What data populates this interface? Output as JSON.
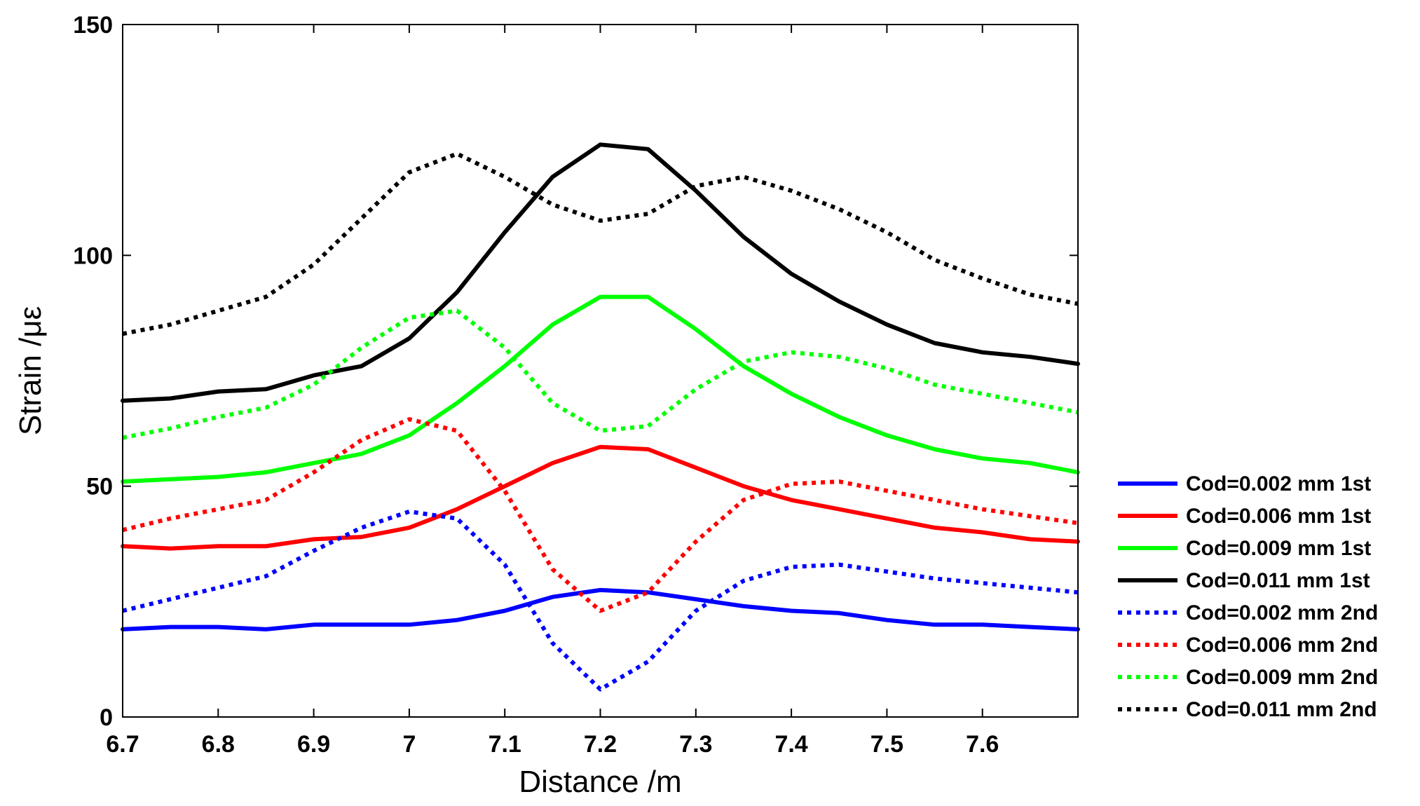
{
  "chart_data": {
    "type": "line",
    "title": "",
    "xlabel": "Distance /m",
    "ylabel": "Strain /με",
    "xlim": [
      6.7,
      7.7
    ],
    "ylim": [
      0,
      150
    ],
    "xticks": [
      6.7,
      6.8,
      6.9,
      7,
      7.1,
      7.2,
      7.3,
      7.4,
      7.5,
      7.6
    ],
    "xtick_labels": [
      "6.7",
      "6.8",
      "6.9",
      "7",
      "7.1",
      "7.2",
      "7.3",
      "7.4",
      "7.5",
      "7.6"
    ],
    "yticks": [
      0,
      50,
      100,
      150
    ],
    "ytick_labels": [
      "0",
      "50",
      "100",
      "150"
    ],
    "grid": false,
    "legend_position": "outside-right-bottom",
    "series": [
      {
        "name": "Cod=0.002 mm 1st",
        "color": "#0000ff",
        "style": "solid",
        "x": [
          6.7,
          6.75,
          6.8,
          6.85,
          6.9,
          6.95,
          7.0,
          7.05,
          7.1,
          7.15,
          7.2,
          7.25,
          7.3,
          7.35,
          7.4,
          7.45,
          7.5,
          7.55,
          7.6,
          7.65,
          7.7
        ],
        "y": [
          19,
          19.5,
          19.5,
          19,
          20,
          20,
          20,
          21,
          23,
          26,
          27.5,
          27,
          25.5,
          24,
          23,
          22.5,
          21,
          20,
          20,
          19.5,
          19
        ]
      },
      {
        "name": "Cod=0.006 mm 1st",
        "color": "#ff0000",
        "style": "solid",
        "x": [
          6.7,
          6.75,
          6.8,
          6.85,
          6.9,
          6.95,
          7.0,
          7.05,
          7.1,
          7.15,
          7.2,
          7.25,
          7.3,
          7.35,
          7.4,
          7.45,
          7.5,
          7.55,
          7.6,
          7.65,
          7.7
        ],
        "y": [
          37,
          36.5,
          37,
          37,
          38.5,
          39,
          41,
          45,
          50,
          55,
          58.5,
          58,
          54,
          50,
          47,
          45,
          43,
          41,
          40,
          38.5,
          38
        ]
      },
      {
        "name": "Cod=0.009 mm 1st",
        "color": "#00ff00",
        "style": "solid",
        "x": [
          6.7,
          6.75,
          6.8,
          6.85,
          6.9,
          6.95,
          7.0,
          7.05,
          7.1,
          7.15,
          7.2,
          7.25,
          7.3,
          7.35,
          7.4,
          7.45,
          7.5,
          7.55,
          7.6,
          7.65,
          7.7
        ],
        "y": [
          51,
          51.5,
          52,
          53,
          55,
          57,
          61,
          68,
          76,
          85,
          91,
          91,
          84,
          76,
          70,
          65,
          61,
          58,
          56,
          55,
          53
        ]
      },
      {
        "name": "Cod=0.011 mm 1st",
        "color": "#000000",
        "style": "solid",
        "x": [
          6.7,
          6.75,
          6.8,
          6.85,
          6.9,
          6.95,
          7.0,
          7.05,
          7.1,
          7.15,
          7.2,
          7.25,
          7.3,
          7.35,
          7.4,
          7.45,
          7.5,
          7.55,
          7.6,
          7.65,
          7.7
        ],
        "y": [
          68.5,
          69,
          70.5,
          71,
          74,
          76,
          82,
          92,
          105,
          117,
          124,
          123,
          114,
          104,
          96,
          90,
          85,
          81,
          79,
          78,
          76.5
        ]
      },
      {
        "name": "Cod=0.002 mm 2nd",
        "color": "#0000ff",
        "style": "dotted",
        "x": [
          6.7,
          6.75,
          6.8,
          6.85,
          6.9,
          6.95,
          7.0,
          7.05,
          7.1,
          7.15,
          7.2,
          7.25,
          7.3,
          7.35,
          7.4,
          7.45,
          7.5,
          7.55,
          7.6,
          7.65,
          7.7
        ],
        "y": [
          23,
          25.5,
          28,
          30.5,
          36,
          41,
          44.5,
          43,
          33,
          16,
          6,
          12,
          23,
          29.5,
          32.5,
          33,
          31.5,
          30,
          29,
          28,
          27
        ]
      },
      {
        "name": "Cod=0.006 mm 2nd",
        "color": "#ff0000",
        "style": "dotted",
        "x": [
          6.7,
          6.75,
          6.8,
          6.85,
          6.9,
          6.95,
          7.0,
          7.05,
          7.1,
          7.15,
          7.2,
          7.25,
          7.3,
          7.35,
          7.4,
          7.45,
          7.5,
          7.55,
          7.6,
          7.65,
          7.7
        ],
        "y": [
          40.5,
          43,
          45,
          47,
          53,
          60,
          64.5,
          62,
          49,
          32,
          23,
          27,
          38,
          47,
          50.5,
          51,
          49,
          47,
          45,
          43.5,
          42
        ]
      },
      {
        "name": "Cod=0.009 mm 2nd",
        "color": "#00ff00",
        "style": "dotted",
        "x": [
          6.7,
          6.75,
          6.8,
          6.85,
          6.9,
          6.95,
          7.0,
          7.05,
          7.1,
          7.15,
          7.2,
          7.25,
          7.3,
          7.35,
          7.4,
          7.45,
          7.5,
          7.55,
          7.6,
          7.65,
          7.7
        ],
        "y": [
          60.5,
          62.5,
          65,
          67,
          72,
          80,
          86.5,
          88,
          80,
          68,
          62,
          63,
          71,
          77,
          79,
          78,
          75.5,
          72,
          70,
          68,
          66
        ]
      },
      {
        "name": "Cod=0.011 mm 2nd",
        "color": "#000000",
        "style": "dotted",
        "x": [
          6.7,
          6.75,
          6.8,
          6.85,
          6.9,
          6.95,
          7.0,
          7.05,
          7.1,
          7.15,
          7.2,
          7.25,
          7.3,
          7.35,
          7.4,
          7.45,
          7.5,
          7.55,
          7.6,
          7.65,
          7.7
        ],
        "y": [
          83,
          85,
          88,
          91,
          98,
          108,
          118,
          122,
          117,
          111,
          107.5,
          109,
          115,
          117,
          114,
          110,
          105,
          99,
          95,
          91.5,
          89.5
        ]
      }
    ]
  }
}
